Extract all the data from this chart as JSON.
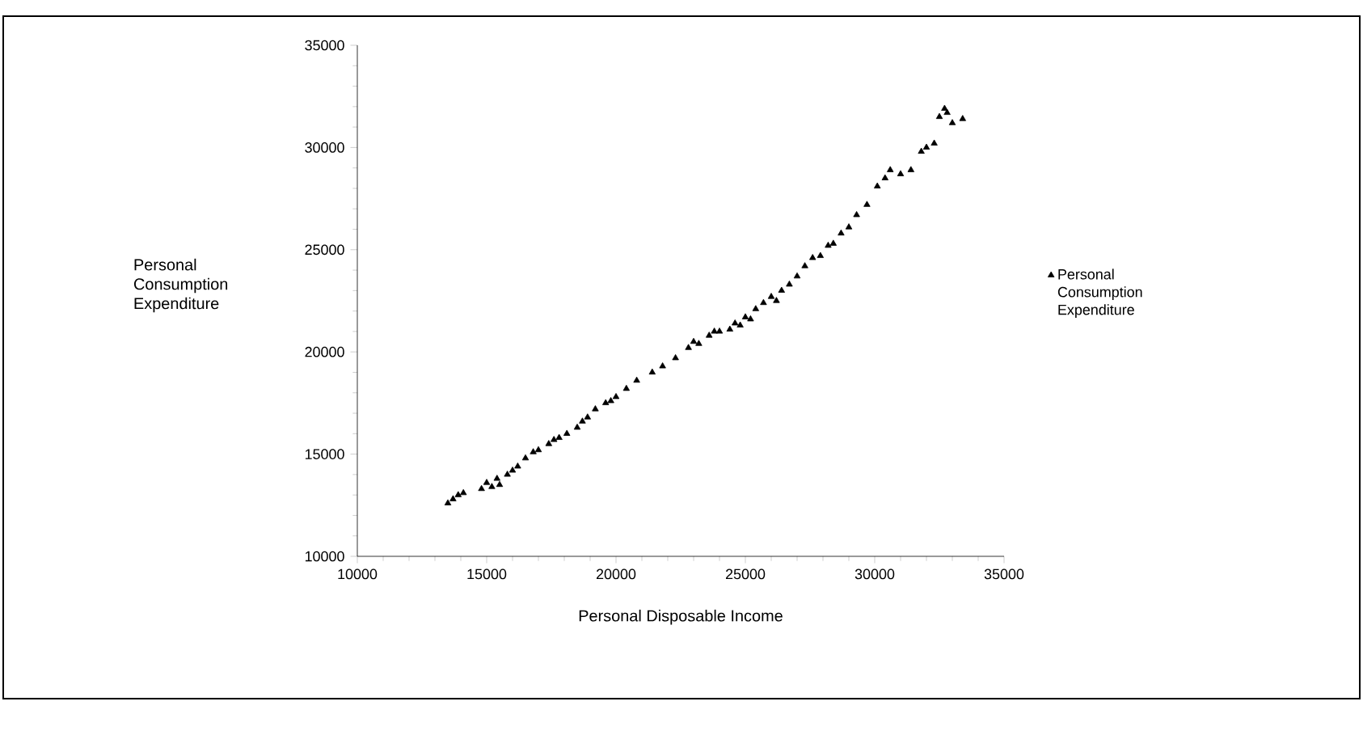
{
  "chart_data": {
    "type": "scatter",
    "xlabel": "Personal Disposable Income",
    "ylabel": "Personal Consumption Expenditure",
    "xlim": [
      10000,
      35000
    ],
    "ylim": [
      10000,
      35000
    ],
    "xticks": [
      10000,
      15000,
      20000,
      25000,
      30000,
      35000
    ],
    "yticks": [
      10000,
      15000,
      20000,
      25000,
      30000,
      35000
    ],
    "grid": false,
    "legend": "right",
    "marker": "triangle",
    "series": [
      {
        "name": "Personal Consumption Expenditure",
        "color": "#000000",
        "x": [
          13500,
          13700,
          13900,
          14100,
          14800,
          15000,
          15200,
          15400,
          15500,
          15800,
          16000,
          16200,
          16500,
          16800,
          17000,
          17400,
          17600,
          17800,
          18100,
          18500,
          18700,
          18900,
          19200,
          19600,
          19800,
          20000,
          20400,
          20800,
          21400,
          21800,
          22300,
          22800,
          23000,
          23200,
          23600,
          23800,
          24000,
          24400,
          24600,
          24800,
          25000,
          25200,
          25400,
          25700,
          26000,
          26200,
          26400,
          26700,
          27000,
          27300,
          27600,
          27900,
          28200,
          28400,
          28700,
          29000,
          29300,
          29700,
          30100,
          30400,
          30600,
          31000,
          31400,
          31800,
          32000,
          32300,
          32500,
          32700,
          32800,
          33000,
          33400
        ],
        "values": [
          12600,
          12800,
          13000,
          13100,
          13300,
          13600,
          13400,
          13800,
          13500,
          14000,
          14200,
          14400,
          14800,
          15100,
          15200,
          15500,
          15700,
          15800,
          16000,
          16300,
          16600,
          16800,
          17200,
          17500,
          17600,
          17800,
          18200,
          18600,
          19000,
          19300,
          19700,
          20200,
          20500,
          20400,
          20800,
          21000,
          21000,
          21100,
          21400,
          21300,
          21700,
          21600,
          22100,
          22400,
          22700,
          22500,
          23000,
          23300,
          23700,
          24200,
          24600,
          24700,
          25200,
          25300,
          25800,
          26100,
          26700,
          27200,
          28100,
          28500,
          28900,
          28700,
          28900,
          29800,
          30000,
          30200,
          31500,
          31900,
          31700,
          31200,
          31400
        ]
      }
    ]
  }
}
